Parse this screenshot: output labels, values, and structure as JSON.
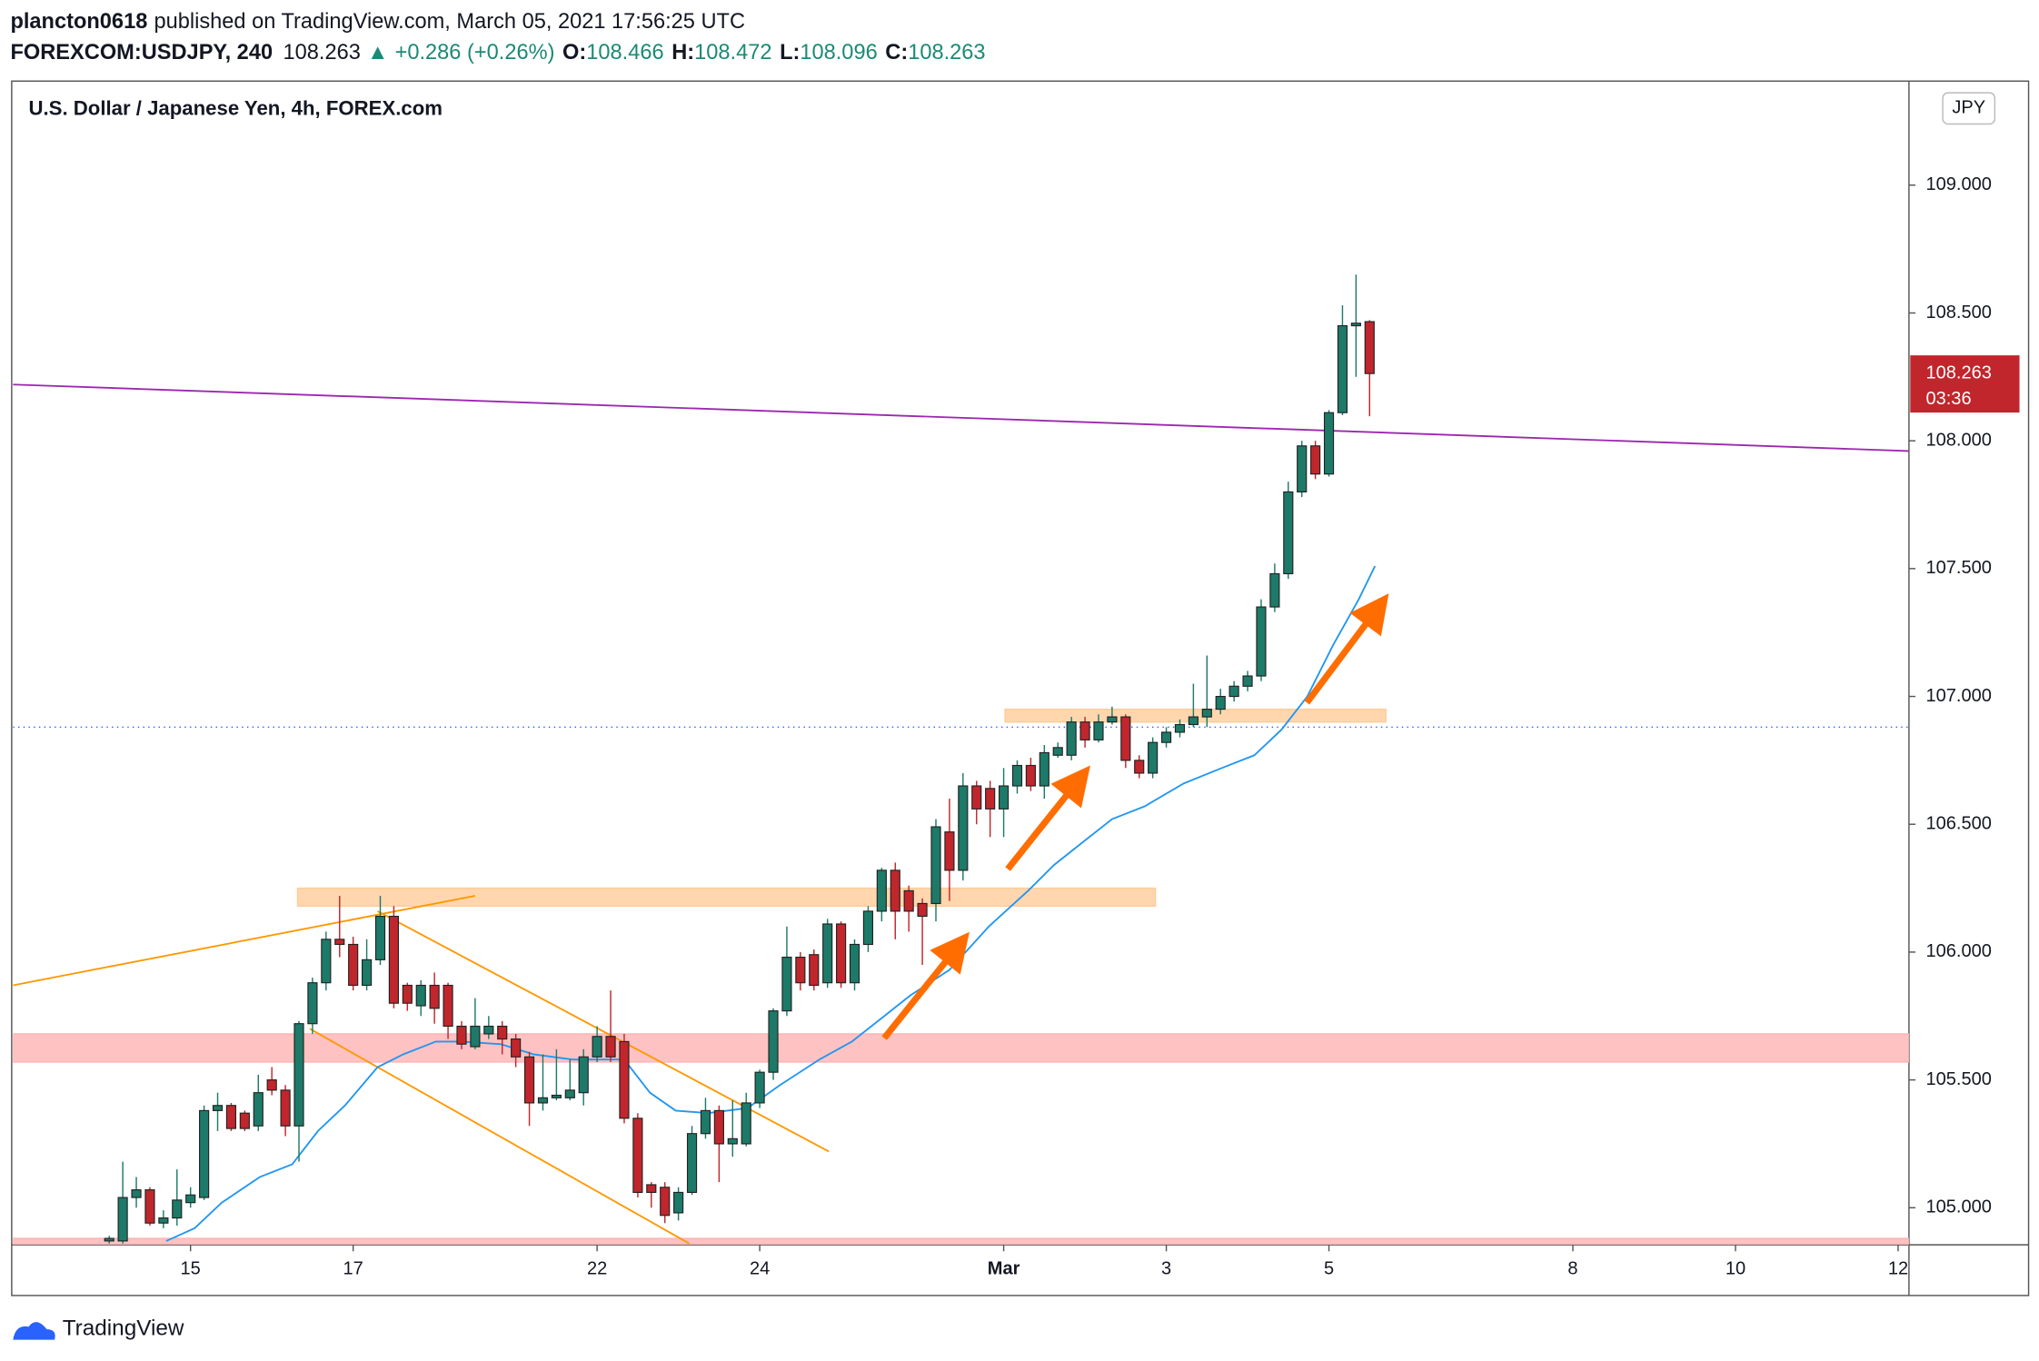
{
  "header": {
    "author": "plancton0618",
    "published": "published on TradingView.com, March 05, 2021 17:56:25 UTC",
    "symbol": "FOREXCOM:USDJPY, 240",
    "arrow": "▲",
    "change": "+0.286 (+0.26%)",
    "ohlc_labels": [
      "O:",
      "H:",
      "L:",
      "C:"
    ]
  },
  "footer": {
    "brand": "TradingView"
  },
  "chart_data": {
    "type": "candlestick",
    "title": "U.S. Dollar / Japanese Yen, 4h, FOREX.com",
    "currency": "JPY",
    "price_countdown": "03:36",
    "up_color": "#1d7a68",
    "down_color": "#c0262c",
    "price_label_color": "#c0262c",
    "x": [
      0,
      1,
      2,
      3,
      4,
      5,
      6,
      7,
      8,
      9,
      10,
      11,
      12,
      13,
      14,
      15,
      16,
      17,
      18,
      19,
      20,
      21,
      22,
      23,
      24,
      25,
      26,
      27,
      28,
      29,
      30,
      31,
      32,
      33,
      34,
      35,
      36,
      37,
      38,
      39,
      40,
      41,
      42,
      43,
      44,
      45,
      46,
      47,
      48,
      49,
      50,
      51,
      52,
      53,
      54,
      55,
      56,
      57,
      58,
      59,
      60,
      61,
      62,
      63,
      64,
      65,
      66,
      67,
      68,
      69,
      70,
      71,
      72,
      73,
      74,
      75,
      76,
      77,
      78,
      79,
      80,
      81,
      82,
      83,
      84,
      85,
      86,
      87,
      88,
      89,
      90,
      91,
      92,
      93
    ],
    "open": [
      104.87,
      104.87,
      105.04,
      105.07,
      104.94,
      104.96,
      105.02,
      105.04,
      105.38,
      105.4,
      105.37,
      105.32,
      105.5,
      105.46,
      105.32,
      105.72,
      105.88,
      106.05,
      106.03,
      105.87,
      105.97,
      106.14,
      105.87,
      105.79,
      105.87,
      105.87,
      105.71,
      105.63,
      105.68,
      105.71,
      105.66,
      105.59,
      105.41,
      105.43,
      105.43,
      105.45,
      105.59,
      105.67,
      105.65,
      105.35,
      105.09,
      105.08,
      104.98,
      105.06,
      105.29,
      105.38,
      105.25,
      105.25,
      105.41,
      105.53,
      105.77,
      105.98,
      105.99,
      105.88,
      106.11,
      105.88,
      106.03,
      106.16,
      106.32,
      106.24,
      106.19,
      106.19,
      106.47,
      106.32,
      106.65,
      106.64,
      106.56,
      106.65,
      106.73,
      106.65,
      106.77,
      106.77,
      106.9,
      106.83,
      106.9,
      106.92,
      106.75,
      106.7,
      106.82,
      106.86,
      106.89,
      106.92,
      106.95,
      107.0,
      107.04,
      107.08,
      107.35,
      107.48,
      107.8,
      107.98,
      107.87,
      108.11,
      108.45,
      108.466
    ],
    "high": [
      104.89,
      105.18,
      105.12,
      105.08,
      104.99,
      105.15,
      105.08,
      105.4,
      105.45,
      105.41,
      105.38,
      105.52,
      105.55,
      105.48,
      105.73,
      105.9,
      106.08,
      106.22,
      106.06,
      106.05,
      106.22,
      106.18,
      105.88,
      105.89,
      105.92,
      105.88,
      105.73,
      105.82,
      105.75,
      105.73,
      105.68,
      105.61,
      105.6,
      105.62,
      105.58,
      105.62,
      105.71,
      105.85,
      105.68,
      105.37,
      105.1,
      105.1,
      105.08,
      105.32,
      105.43,
      105.4,
      105.42,
      105.45,
      105.54,
      105.78,
      106.1,
      106.0,
      106.01,
      106.13,
      106.12,
      106.05,
      106.18,
      106.33,
      106.35,
      106.26,
      106.21,
      106.52,
      106.6,
      106.7,
      106.67,
      106.67,
      106.72,
      106.75,
      106.76,
      106.81,
      106.82,
      106.92,
      106.92,
      106.93,
      106.96,
      106.93,
      106.77,
      106.84,
      106.88,
      106.91,
      107.05,
      107.16,
      107.03,
      107.06,
      107.1,
      107.38,
      107.52,
      107.84,
      108.0,
      108.0,
      108.12,
      108.53,
      108.65,
      108.472
    ],
    "low": [
      104.86,
      104.86,
      105.0,
      104.93,
      104.92,
      104.93,
      105.0,
      105.03,
      105.3,
      105.3,
      105.3,
      105.3,
      105.44,
      105.28,
      105.18,
      105.68,
      105.85,
      105.98,
      105.85,
      105.85,
      105.95,
      105.78,
      105.77,
      105.75,
      105.72,
      105.66,
      105.62,
      105.62,
      105.66,
      105.6,
      105.55,
      105.32,
      105.38,
      105.42,
      105.42,
      105.4,
      105.57,
      105.57,
      105.33,
      105.04,
      105.0,
      104.94,
      104.95,
      105.05,
      105.27,
      105.1,
      105.2,
      105.24,
      105.39,
      105.5,
      105.75,
      105.85,
      105.85,
      105.86,
      105.86,
      105.85,
      106.0,
      106.12,
      106.05,
      106.08,
      105.95,
      106.12,
      106.2,
      106.28,
      106.5,
      106.45,
      106.45,
      106.62,
      106.63,
      106.6,
      106.76,
      106.75,
      106.8,
      106.82,
      106.89,
      106.72,
      106.68,
      106.68,
      106.8,
      106.84,
      106.88,
      106.88,
      106.93,
      106.98,
      107.02,
      107.06,
      107.33,
      107.46,
      107.78,
      107.85,
      107.86,
      108.1,
      108.25,
      108.096
    ],
    "close": [
      104.88,
      105.04,
      105.07,
      104.94,
      104.96,
      105.03,
      105.05,
      105.38,
      105.4,
      105.31,
      105.31,
      105.45,
      105.46,
      105.32,
      105.72,
      105.88,
      106.05,
      106.03,
      105.87,
      105.97,
      106.14,
      105.8,
      105.8,
      105.87,
      105.78,
      105.71,
      105.64,
      105.71,
      105.71,
      105.66,
      105.59,
      105.41,
      105.43,
      105.44,
      105.46,
      105.59,
      105.67,
      105.59,
      105.35,
      105.06,
      105.06,
      104.97,
      105.06,
      105.29,
      105.38,
      105.25,
      105.27,
      105.41,
      105.53,
      105.77,
      105.98,
      105.88,
      105.87,
      106.11,
      105.88,
      106.03,
      106.16,
      106.32,
      106.16,
      106.16,
      106.14,
      106.49,
      106.32,
      106.65,
      106.56,
      106.56,
      106.65,
      106.73,
      106.65,
      106.78,
      106.8,
      106.9,
      106.83,
      106.9,
      106.92,
      106.75,
      106.7,
      106.82,
      106.86,
      106.89,
      106.92,
      106.95,
      107.0,
      107.04,
      107.08,
      107.35,
      107.48,
      107.8,
      107.98,
      107.87,
      108.11,
      108.45,
      108.46,
      108.263
    ],
    "ma": {
      "color": "#2196f3",
      "x": [
        4.2,
        6.3,
        8.3,
        11.1,
        13.5,
        15.4,
        17.4,
        19.8,
        21.7,
        24.1,
        26.0,
        28.9,
        31.3,
        34.2,
        36.1,
        38.0,
        39.9,
        41.8,
        44.2,
        47.1,
        49.5,
        52.4,
        54.8,
        57.2,
        59.1,
        62.0,
        64.9,
        67.8,
        69.7,
        71.6,
        74.0,
        76.4,
        79.3,
        82.1,
        84.5,
        86.5,
        88.4,
        90.3,
        92.2,
        93.4
      ],
      "values": [
        104.87,
        104.92,
        105.02,
        105.12,
        105.17,
        105.3,
        105.4,
        105.55,
        105.6,
        105.65,
        105.65,
        105.64,
        105.6,
        105.58,
        105.58,
        105.58,
        105.45,
        105.38,
        105.37,
        105.39,
        105.48,
        105.58,
        105.65,
        105.75,
        105.83,
        105.93,
        106.1,
        106.24,
        106.34,
        106.42,
        106.52,
        106.57,
        106.66,
        106.72,
        106.77,
        106.87,
        107.0,
        107.2,
        107.38,
        107.51
      ]
    },
    "trendlines": [
      {
        "color": "#9c27b0",
        "x": [
          -7.1,
          132.8
        ],
        "values": [
          108.22,
          107.96
        ]
      },
      {
        "color": "#ff9800",
        "x": [
          -7.1,
          27.0
        ],
        "values": [
          105.87,
          106.22
        ]
      },
      {
        "color": "#ff9800",
        "x": [
          19.8,
          53.1
        ],
        "values": [
          106.16,
          105.22
        ]
      },
      {
        "color": "#ff9800",
        "x": [
          14.8,
          42.8
        ],
        "values": [
          105.7,
          104.86
        ]
      }
    ],
    "zones": [
      {
        "color": "#ffcc99",
        "x": [
          13.9,
          77.2
        ],
        "values": [
          106.18,
          106.25
        ]
      },
      {
        "color": "#ffcc99",
        "x": [
          66.1,
          94.2
        ],
        "values": [
          106.9,
          106.95
        ]
      },
      {
        "color": "#ffb3b3",
        "values": [
          105.57,
          105.68
        ]
      },
      {
        "color": "#ffb3b3",
        "values": [
          104.85,
          104.88
        ]
      }
    ],
    "hline": {
      "value": 106.88,
      "color": "#2962ff"
    },
    "xlim": [
      -7.1,
      132.8
    ],
    "ylim": [
      104.855,
      109.407
    ],
    "xticks": [
      {
        "value": 6,
        "label": "15"
      },
      {
        "value": 18,
        "label": "17"
      },
      {
        "value": 36,
        "label": "22"
      },
      {
        "value": 48,
        "label": "24"
      },
      {
        "value": 66,
        "label": "Mar"
      },
      {
        "value": 78,
        "label": "3"
      },
      {
        "value": 90,
        "label": "5"
      },
      {
        "value": 108,
        "label": "8"
      },
      {
        "value": 120,
        "label": "10"
      },
      {
        "value": 132,
        "label": "12"
      }
    ],
    "yticks": [
      {
        "value": 105,
        "label": "105.000"
      },
      {
        "value": 105.5,
        "label": "105.500"
      },
      {
        "value": 106,
        "label": "106.000"
      },
      {
        "value": 106.5,
        "label": "106.500"
      },
      {
        "value": 107,
        "label": "107.000"
      },
      {
        "value": 107.5,
        "label": "107.500"
      },
      {
        "value": 108,
        "label": "108.000"
      },
      {
        "value": 108.5,
        "label": "108.500"
      },
      {
        "value": 109,
        "label": "109.000"
      }
    ],
    "grid": false
  }
}
